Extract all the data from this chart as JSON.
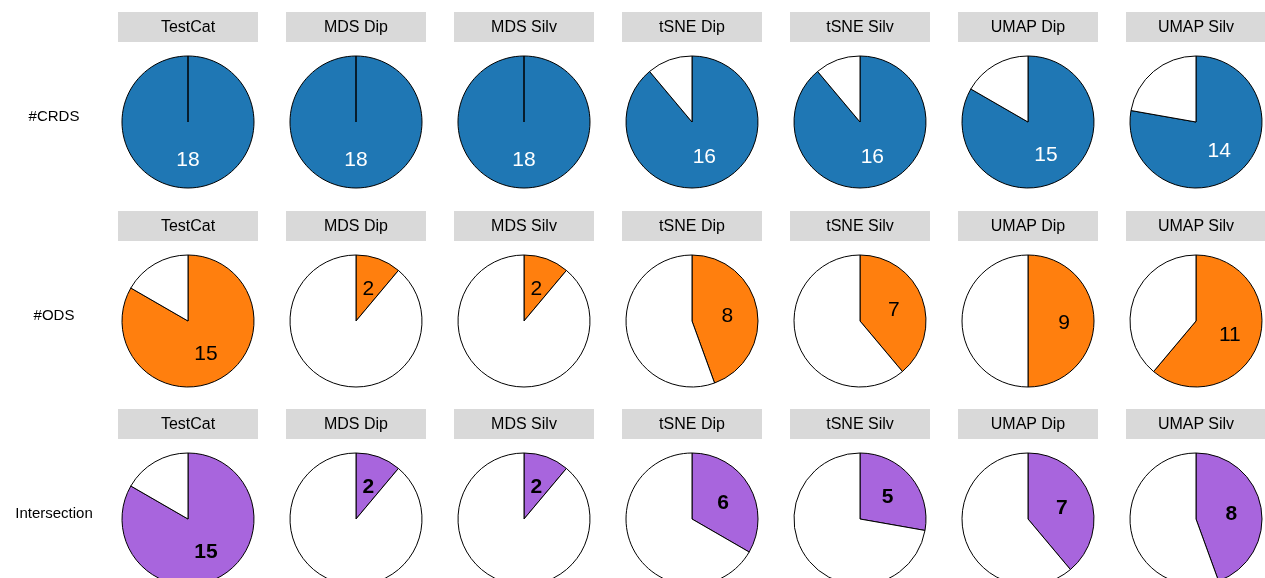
{
  "chart_data": [
    {
      "type": "pie",
      "title": "TestCat",
      "ylabel": "#CRDS",
      "categories": [
        null,
        null
      ],
      "values": [
        18,
        0
      ],
      "colors": [
        "#1f77b4",
        "#ffffff"
      ],
      "value_labels": [
        "18",
        null
      ]
    },
    {
      "type": "pie",
      "title": "MDS Dip",
      "categories": [
        null,
        null
      ],
      "values": [
        18,
        0
      ],
      "colors": [
        "#1f77b4",
        "#ffffff"
      ],
      "value_labels": [
        "18",
        null
      ]
    },
    {
      "type": "pie",
      "title": "MDS Silv",
      "categories": [
        null,
        null
      ],
      "values": [
        18,
        0
      ],
      "colors": [
        "#1f77b4",
        "#ffffff"
      ],
      "value_labels": [
        "18",
        null
      ]
    },
    {
      "type": "pie",
      "title": "tSNE Dip",
      "categories": [
        null,
        null
      ],
      "values": [
        16,
        2
      ],
      "colors": [
        "#1f77b4",
        "#ffffff"
      ],
      "value_labels": [
        "16",
        null
      ]
    },
    {
      "type": "pie",
      "title": "tSNE Silv",
      "categories": [
        null,
        null
      ],
      "values": [
        16,
        2
      ],
      "colors": [
        "#1f77b4",
        "#ffffff"
      ],
      "value_labels": [
        "16",
        null
      ]
    },
    {
      "type": "pie",
      "title": "UMAP Dip",
      "categories": [
        null,
        null
      ],
      "values": [
        15,
        3
      ],
      "colors": [
        "#1f77b4",
        "#ffffff"
      ],
      "value_labels": [
        "15",
        null
      ]
    },
    {
      "type": "pie",
      "title": "UMAP Silv",
      "categories": [
        null,
        null
      ],
      "values": [
        14,
        4
      ],
      "colors": [
        "#1f77b4",
        "#ffffff"
      ],
      "value_labels": [
        "14",
        null
      ]
    },
    {
      "type": "pie",
      "title": "TestCat",
      "ylabel": "#ODS",
      "categories": [
        null,
        null
      ],
      "values": [
        15,
        3
      ],
      "colors": [
        "#ff7f0e",
        "#ffffff"
      ],
      "value_labels": [
        "15",
        null
      ]
    },
    {
      "type": "pie",
      "title": "MDS Dip",
      "categories": [
        null,
        null
      ],
      "values": [
        2,
        16
      ],
      "colors": [
        "#ff7f0e",
        "#ffffff"
      ],
      "value_labels": [
        "2",
        null
      ]
    },
    {
      "type": "pie",
      "title": "MDS Silv",
      "categories": [
        null,
        null
      ],
      "values": [
        2,
        16
      ],
      "colors": [
        "#ff7f0e",
        "#ffffff"
      ],
      "value_labels": [
        "2",
        null
      ]
    },
    {
      "type": "pie",
      "title": "tSNE Dip",
      "categories": [
        null,
        null
      ],
      "values": [
        8,
        10
      ],
      "colors": [
        "#ff7f0e",
        "#ffffff"
      ],
      "value_labels": [
        "8",
        null
      ]
    },
    {
      "type": "pie",
      "title": "tSNE Silv",
      "categories": [
        null,
        null
      ],
      "values": [
        7,
        11
      ],
      "colors": [
        "#ff7f0e",
        "#ffffff"
      ],
      "value_labels": [
        "7",
        null
      ]
    },
    {
      "type": "pie",
      "title": "UMAP Dip",
      "categories": [
        null,
        null
      ],
      "values": [
        9,
        9
      ],
      "colors": [
        "#ff7f0e",
        "#ffffff"
      ],
      "value_labels": [
        "9",
        null
      ]
    },
    {
      "type": "pie",
      "title": "UMAP Silv",
      "categories": [
        null,
        null
      ],
      "values": [
        11,
        7
      ],
      "colors": [
        "#ff7f0e",
        "#ffffff"
      ],
      "value_labels": [
        "11",
        null
      ]
    },
    {
      "type": "pie",
      "title": "TestCat",
      "ylabel": "Intersection",
      "categories": [
        null,
        null
      ],
      "values": [
        15,
        3
      ],
      "colors": [
        "#a865dd",
        "#ffffff"
      ],
      "value_labels": [
        "15",
        null
      ]
    },
    {
      "type": "pie",
      "title": "MDS Dip",
      "categories": [
        null,
        null
      ],
      "values": [
        2,
        16
      ],
      "colors": [
        "#a865dd",
        "#ffffff"
      ],
      "value_labels": [
        "2",
        null
      ]
    },
    {
      "type": "pie",
      "title": "MDS Silv",
      "categories": [
        null,
        null
      ],
      "values": [
        2,
        16
      ],
      "colors": [
        "#a865dd",
        "#ffffff"
      ],
      "value_labels": [
        "2",
        null
      ]
    },
    {
      "type": "pie",
      "title": "tSNE Dip",
      "categories": [
        null,
        null
      ],
      "values": [
        6,
        12
      ],
      "colors": [
        "#a865dd",
        "#ffffff"
      ],
      "value_labels": [
        "6",
        null
      ]
    },
    {
      "type": "pie",
      "title": "tSNE Silv",
      "categories": [
        null,
        null
      ],
      "values": [
        5,
        13
      ],
      "colors": [
        "#a865dd",
        "#ffffff"
      ],
      "value_labels": [
        "5",
        null
      ]
    },
    {
      "type": "pie",
      "title": "UMAP Dip",
      "categories": [
        null,
        null
      ],
      "values": [
        7,
        11
      ],
      "colors": [
        "#a865dd",
        "#ffffff"
      ],
      "value_labels": [
        "7",
        null
      ]
    },
    {
      "type": "pie",
      "title": "UMAP Silv",
      "categories": [
        null,
        null
      ],
      "values": [
        8,
        10
      ],
      "colors": [
        "#a865dd",
        "#ffffff"
      ],
      "value_labels": [
        "8",
        null
      ]
    }
  ]
}
